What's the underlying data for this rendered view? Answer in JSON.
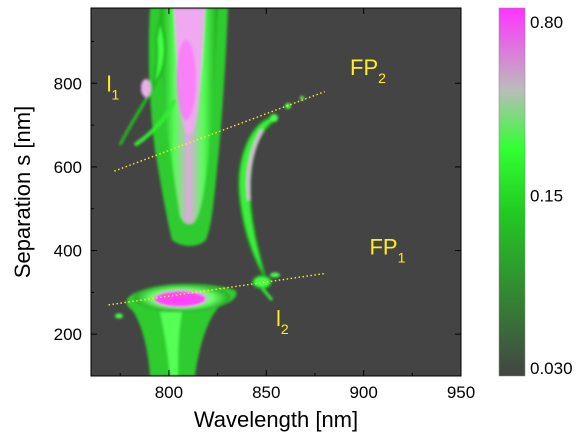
{
  "chart_data": {
    "type": "heatmap",
    "xlabel": "Wavelength [nm]",
    "ylabel": "Separation s [nm]",
    "xlim": [
      760,
      950
    ],
    "ylim": [
      100,
      980
    ],
    "x_ticks": [
      800,
      850,
      900,
      950
    ],
    "y_ticks": [
      200,
      400,
      600,
      800
    ],
    "x_tick_labels": [
      "800",
      "850",
      "900",
      "950"
    ],
    "y_tick_labels": [
      "200",
      "400",
      "600",
      "800"
    ],
    "colorbar": {
      "scale": "log",
      "range": [
        0.03,
        0.8
      ],
      "tick_labels": [
        "0.80",
        "0.15",
        "0.030"
      ],
      "tick_values": [
        0.8,
        0.15,
        0.03
      ],
      "colors": [
        "#444444",
        "#22cc22",
        "#33ff33",
        "#bbbbbb",
        "#ff33ff"
      ]
    },
    "background_color": "#444444",
    "annotations": [
      {
        "id": "fp2",
        "main": "FP",
        "sub": "2",
        "x": 893,
        "y": 820
      },
      {
        "id": "fp1",
        "main": "FP",
        "sub": "1",
        "x": 903,
        "y": 390
      },
      {
        "id": "l1",
        "main": "l",
        "sub": "1",
        "x": 768,
        "y": 780
      },
      {
        "id": "l2",
        "main": "l",
        "sub": "2",
        "x": 855,
        "y": 220
      }
    ],
    "guide_lines": [
      {
        "name": "fp2-line",
        "x": [
          772,
          880
        ],
        "y": [
          590,
          780
        ]
      },
      {
        "name": "fp1-line",
        "x": [
          769,
          880
        ],
        "y": [
          270,
          345
        ]
      }
    ],
    "features": [
      {
        "name": "upper-mode-band",
        "branch_x": [
          796,
          803,
          810
        ],
        "s_range": [
          410,
          980
        ],
        "peak_wavelength": 810,
        "peak_s": 820
      },
      {
        "name": "l1-branch",
        "s_range": [
          640,
          950
        ]
      },
      {
        "name": "fp2-crossing-branch",
        "s_range": [
          340,
          720
        ]
      },
      {
        "name": "lower-mode-band",
        "peak_wavelength": 807,
        "peak_s": 285,
        "s_range": [
          100,
          330
        ]
      }
    ]
  }
}
